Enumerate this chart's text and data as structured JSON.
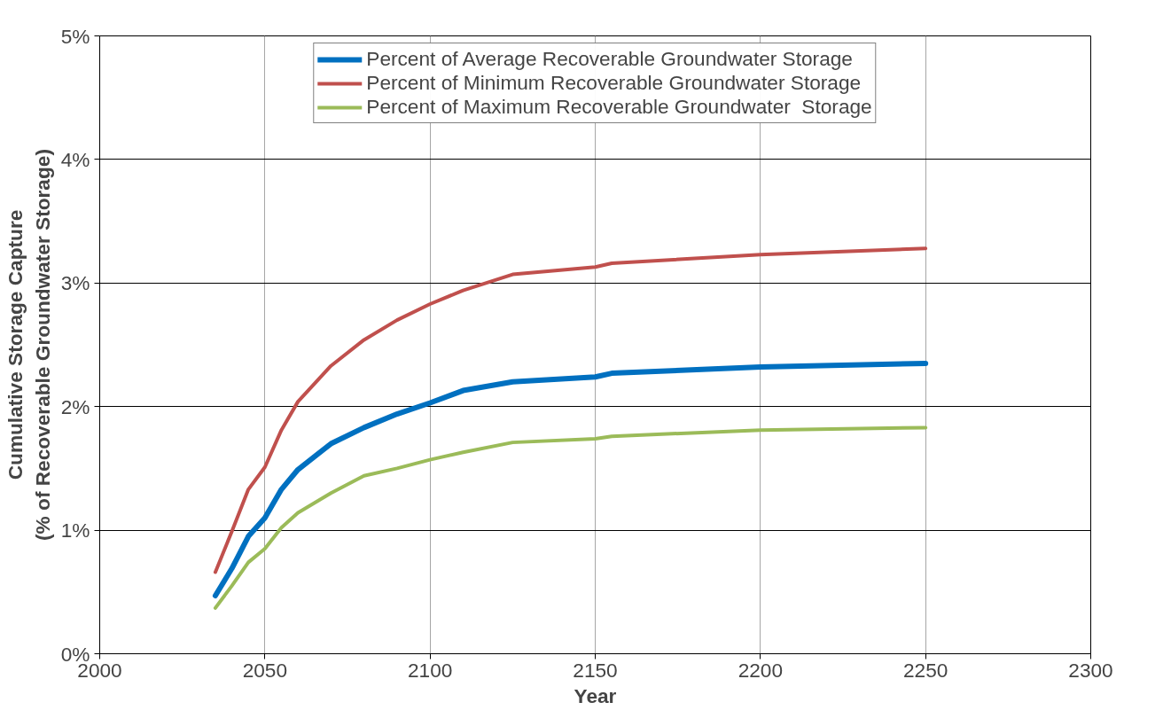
{
  "chart_data": {
    "type": "line",
    "xlabel": "Year",
    "ylabel": "Cumulative Storage Capture\n(% of Recoverable Groundwater Storage)",
    "x": [
      2035,
      2040,
      2045,
      2050,
      2055,
      2060,
      2070,
      2080,
      2090,
      2100,
      2110,
      2125,
      2150,
      2155,
      2200,
      2250
    ],
    "series": [
      {
        "name": "Percent of Average Recoverable Groundwater Storage",
        "color": "#0070c0",
        "values": [
          0.47,
          0.69,
          0.95,
          1.1,
          1.33,
          1.49,
          1.7,
          1.83,
          1.94,
          2.03,
          2.13,
          2.2,
          2.24,
          2.27,
          2.32,
          2.35
        ]
      },
      {
        "name": "Percent of Minimum Recoverable Groundwater Storage",
        "color": "#c0504d",
        "values": [
          0.66,
          0.99,
          1.33,
          1.51,
          1.81,
          2.04,
          2.33,
          2.54,
          2.7,
          2.83,
          2.94,
          3.07,
          3.13,
          3.16,
          3.23,
          3.28
        ]
      },
      {
        "name": "Percent of Maximum Recoverable Groundwater  Storage",
        "color": "#9bbb59",
        "values": [
          0.37,
          0.55,
          0.74,
          0.85,
          1.02,
          1.14,
          1.3,
          1.44,
          1.5,
          1.57,
          1.63,
          1.71,
          1.74,
          1.76,
          1.81,
          1.83
        ]
      }
    ],
    "xlim": [
      2000,
      2300
    ],
    "xticks": [
      2000,
      2050,
      2100,
      2150,
      2200,
      2250,
      2300
    ],
    "ylim": [
      0,
      5
    ],
    "yticks": [
      {
        "value": 0,
        "label": "0%"
      },
      {
        "value": 1,
        "label": "1%"
      },
      {
        "value": 2,
        "label": "2%"
      },
      {
        "value": 3,
        "label": "3%"
      },
      {
        "value": 4,
        "label": "4%"
      },
      {
        "value": 5,
        "label": "5%"
      }
    ],
    "grid": true,
    "legend": "top",
    "marker": "none",
    "line_style": "solid"
  }
}
